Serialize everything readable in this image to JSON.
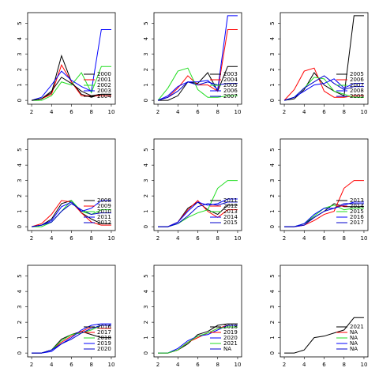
{
  "chart_data": [
    {
      "type": "line",
      "x": [
        2,
        3,
        4,
        5,
        6,
        7,
        8,
        9,
        10
      ],
      "xlim": [
        1.6,
        10.4
      ],
      "xticks": [
        2,
        4,
        6,
        8,
        10
      ],
      "ylim": [
        -0.25,
        5.7
      ],
      "yticks": [
        0,
        1,
        2,
        3,
        4,
        5
      ],
      "legend": "right",
      "series": [
        {
          "name": "2000",
          "color": "#000000",
          "values": [
            0,
            0.1,
            0.5,
            2.9,
            1.2,
            0.4,
            0.2,
            0.4,
            0.4
          ]
        },
        {
          "name": "2001",
          "color": "#ff0000",
          "values": [
            0,
            0.1,
            0.4,
            2.3,
            1.2,
            0.3,
            0.3,
            0.3,
            0.3
          ]
        },
        {
          "name": "2002",
          "color": "#22dd22",
          "values": [
            0,
            0,
            0.3,
            1.2,
            1.0,
            1.8,
            0.5,
            2.2,
            2.2
          ]
        },
        {
          "name": "2003",
          "color": "#0000ff",
          "values": [
            0,
            0.2,
            1.0,
            1.9,
            1.3,
            0.9,
            0.6,
            4.6,
            4.6
          ]
        },
        {
          "name": "2004",
          "color": "#000000",
          "values": [
            0,
            0.1,
            0.6,
            1.5,
            1.1,
            0.6,
            0.3,
            0.4,
            0.4
          ]
        }
      ]
    },
    {
      "type": "line",
      "x": [
        2,
        3,
        4,
        5,
        6,
        7,
        8,
        9,
        10
      ],
      "xlim": [
        1.6,
        10.4
      ],
      "xticks": [
        2,
        4,
        6,
        8,
        10
      ],
      "ylim": [
        -0.25,
        5.7
      ],
      "yticks": [
        0,
        1,
        2,
        3,
        4,
        5
      ],
      "legend": "right",
      "series": [
        {
          "name": "2003",
          "color": "#000000",
          "values": [
            0,
            0,
            0.3,
            1.2,
            1.1,
            1.8,
            0.6,
            2.2,
            2.2
          ]
        },
        {
          "name": "2004",
          "color": "#ff0000",
          "values": [
            0,
            0.2,
            0.8,
            1.6,
            1.0,
            1.0,
            0.6,
            4.6,
            4.6
          ]
        },
        {
          "name": "2005",
          "color": "#22dd22",
          "values": [
            0,
            0.8,
            1.9,
            2.1,
            0.7,
            0.2,
            0.2,
            0.3,
            0.3
          ]
        },
        {
          "name": "2006",
          "color": "#0000ff",
          "values": [
            0,
            0.3,
            0.9,
            1.2,
            1.2,
            1.3,
            0.7,
            5.5,
            5.5
          ]
        },
        {
          "name": "2007",
          "color": "#0000cc",
          "values": [
            0,
            0.2,
            0.6,
            1.2,
            1.0,
            1.2,
            1.0,
            1.1,
            1.1
          ]
        }
      ]
    },
    {
      "type": "line",
      "x": [
        2,
        3,
        4,
        5,
        6,
        7,
        8,
        9,
        10
      ],
      "xlim": [
        1.6,
        10.4
      ],
      "xticks": [
        2,
        4,
        6,
        8,
        10
      ],
      "ylim": [
        -0.25,
        5.7
      ],
      "yticks": [
        0,
        1,
        2,
        3,
        4,
        5
      ],
      "legend": "right",
      "series": [
        {
          "name": "2005",
          "color": "#000000",
          "values": [
            0,
            0.1,
            0.7,
            1.8,
            1.0,
            0.6,
            0.3,
            5.5,
            5.5
          ]
        },
        {
          "name": "2006",
          "color": "#ff0000",
          "values": [
            0,
            0.7,
            1.9,
            2.1,
            0.6,
            0.2,
            0.2,
            0.3,
            0.3
          ]
        },
        {
          "name": "2007",
          "color": "#22dd22",
          "values": [
            0,
            0.2,
            0.8,
            1.5,
            1.4,
            0.6,
            0.4,
            0.2,
            0.2
          ]
        },
        {
          "name": "2008",
          "color": "#0000ff",
          "values": [
            0,
            0.2,
            0.6,
            1.0,
            1.1,
            1.4,
            0.8,
            1.1,
            1.1
          ]
        },
        {
          "name": "2009",
          "color": "#0000cc",
          "values": [
            0,
            0.2,
            0.8,
            1.2,
            1.6,
            1.1,
            0.7,
            0.9,
            0.9
          ]
        }
      ]
    },
    {
      "type": "line",
      "x": [
        2,
        3,
        4,
        5,
        6,
        7,
        8,
        9,
        10
      ],
      "xlim": [
        1.6,
        10.4
      ],
      "xticks": [
        2,
        4,
        6,
        8,
        10
      ],
      "ylim": [
        -0.25,
        5.7
      ],
      "yticks": [
        0,
        1,
        2,
        3,
        4,
        5
      ],
      "legend": "right",
      "series": [
        {
          "name": "2008",
          "color": "#000000",
          "values": [
            0,
            0.1,
            0.5,
            1.5,
            1.7,
            0.9,
            0.5,
            0.2,
            0.2
          ]
        },
        {
          "name": "2009",
          "color": "#ff0000",
          "values": [
            0,
            0.2,
            0.8,
            1.7,
            1.6,
            0.9,
            0.3,
            0.1,
            0.1
          ]
        },
        {
          "name": "2010",
          "color": "#22dd22",
          "values": [
            0,
            0,
            0.3,
            1.0,
            1.7,
            1.0,
            0.8,
            1.1,
            1.1
          ]
        },
        {
          "name": "2011",
          "color": "#0000ff",
          "values": [
            0,
            0.1,
            0.4,
            1.3,
            1.6,
            1.0,
            1.2,
            1.7,
            1.7
          ]
        },
        {
          "name": "2012",
          "color": "#0000cc",
          "values": [
            0,
            0.1,
            0.3,
            1.0,
            1.5,
            1.1,
            0.8,
            0.9,
            0.9
          ]
        }
      ]
    },
    {
      "type": "line",
      "x": [
        2,
        3,
        4,
        5,
        6,
        7,
        8,
        9,
        10
      ],
      "xlim": [
        1.6,
        10.4
      ],
      "xticks": [
        2,
        4,
        6,
        8,
        10
      ],
      "ylim": [
        -0.25,
        5.7
      ],
      "yticks": [
        0,
        1,
        2,
        3,
        4,
        5
      ],
      "legend": "right",
      "series": [
        {
          "name": "2011",
          "color": "#000000",
          "values": [
            0,
            0,
            0.3,
            1.2,
            1.6,
            1.1,
            0.8,
            1.4,
            1.4
          ]
        },
        {
          "name": "2012",
          "color": "#ff0000",
          "values": [
            0,
            0,
            0.3,
            1.1,
            1.7,
            1.0,
            0.6,
            1.1,
            1.1
          ]
        },
        {
          "name": "2013",
          "color": "#22dd22",
          "values": [
            0,
            0,
            0.2,
            0.6,
            0.9,
            1.1,
            2.5,
            3.0,
            3.0
          ]
        },
        {
          "name": "2014",
          "color": "#0000ff",
          "values": [
            0,
            0,
            0.3,
            1.0,
            1.6,
            1.4,
            1.5,
            1.8,
            1.8
          ]
        },
        {
          "name": "2015",
          "color": "#0000cc",
          "values": [
            0,
            0,
            0.2,
            0.7,
            1.3,
            1.5,
            1.4,
            1.6,
            1.6
          ]
        }
      ]
    },
    {
      "type": "line",
      "x": [
        2,
        3,
        4,
        5,
        6,
        7,
        8,
        9,
        10
      ],
      "xlim": [
        1.6,
        10.4
      ],
      "xticks": [
        2,
        4,
        6,
        8,
        10
      ],
      "ylim": [
        -0.25,
        5.7
      ],
      "yticks": [
        0,
        1,
        2,
        3,
        4,
        5
      ],
      "legend": "right",
      "series": [
        {
          "name": "2013",
          "color": "#000000",
          "values": [
            0,
            0,
            0.2,
            0.6,
            1.0,
            1.5,
            1.3,
            1.3,
            1.3
          ]
        },
        {
          "name": "2014",
          "color": "#ff0000",
          "values": [
            0,
            0,
            0.1,
            0.4,
            0.8,
            1.0,
            2.5,
            3.0,
            3.0
          ]
        },
        {
          "name": "2015",
          "color": "#22dd22",
          "values": [
            0,
            0,
            0.2,
            0.7,
            1.2,
            1.4,
            1.1,
            1.2,
            1.2
          ]
        },
        {
          "name": "2016",
          "color": "#0000ff",
          "values": [
            0,
            0,
            0.2,
            0.8,
            1.2,
            1.2,
            1.4,
            1.6,
            1.6
          ]
        },
        {
          "name": "2017",
          "color": "#0000cc",
          "values": [
            0,
            0,
            0.1,
            0.6,
            1.0,
            1.2,
            1.5,
            1.5,
            1.5
          ]
        }
      ]
    },
    {
      "type": "line",
      "x": [
        2,
        3,
        4,
        5,
        6,
        7,
        8,
        9,
        10
      ],
      "xlim": [
        1.6,
        10.4
      ],
      "xticks": [
        2,
        4,
        6,
        8,
        10
      ],
      "ylim": [
        -0.25,
        5.7
      ],
      "yticks": [
        0,
        1,
        2,
        3,
        4,
        5
      ],
      "legend": "right",
      "series": [
        {
          "name": "2016",
          "color": "#000000",
          "values": [
            0,
            0,
            0.2,
            0.9,
            1.2,
            1.4,
            1.2,
            1.0,
            1.0
          ]
        },
        {
          "name": "2017",
          "color": "#ff0000",
          "values": [
            0,
            0,
            0.2,
            0.7,
            1.1,
            1.4,
            1.7,
            1.6,
            1.6
          ]
        },
        {
          "name": "2018",
          "color": "#22dd22",
          "values": [
            0,
            0,
            0.2,
            0.8,
            1.2,
            1.3,
            1.5,
            1.8,
            1.8
          ]
        },
        {
          "name": "2019",
          "color": "#0000ff",
          "values": [
            0,
            0,
            0.1,
            0.6,
            1.0,
            1.5,
            1.8,
            1.9,
            1.9
          ]
        },
        {
          "name": "2020",
          "color": "#0000cc",
          "values": [
            0,
            0,
            0.2,
            0.6,
            0.9,
            1.3,
            1.6,
            1.8,
            1.8
          ]
        }
      ]
    },
    {
      "type": "line",
      "x": [
        2,
        3,
        4,
        5,
        6,
        7,
        8,
        9,
        10
      ],
      "xlim": [
        1.6,
        10.4
      ],
      "xticks": [
        2,
        4,
        6,
        8,
        10
      ],
      "ylim": [
        -0.25,
        5.7
      ],
      "yticks": [
        0,
        1,
        2,
        3,
        4,
        5
      ],
      "legend": "right",
      "series": [
        {
          "name": "2018",
          "color": "#000000",
          "values": [
            0,
            0,
            0.2,
            0.6,
            1.2,
            1.4,
            1.8,
            1.9,
            1.9
          ]
        },
        {
          "name": "2019",
          "color": "#ff0000",
          "values": [
            0,
            0,
            0.2,
            0.7,
            1.0,
            1.3,
            1.6,
            1.8,
            1.8
          ]
        },
        {
          "name": "2020",
          "color": "#0000ff",
          "values": [
            0,
            0,
            0.3,
            0.8,
            1.1,
            1.2,
            1.5,
            1.8,
            1.8
          ]
        },
        {
          "name": "2021",
          "color": "#22dd22",
          "values": [
            0,
            0,
            0.2,
            0.7,
            1.1,
            1.3,
            1.6,
            1.7,
            1.7
          ]
        },
        {
          "name": "NA",
          "color": "#0000cc",
          "values": [
            null,
            null,
            null,
            null,
            null,
            null,
            null,
            null,
            null
          ]
        }
      ]
    },
    {
      "type": "line",
      "x": [
        2,
        3,
        4,
        5,
        6,
        7,
        8,
        9,
        10
      ],
      "xlim": [
        1.6,
        10.4
      ],
      "xticks": [
        2,
        4,
        6,
        8,
        10
      ],
      "ylim": [
        -0.25,
        5.7
      ],
      "yticks": [
        0,
        1,
        2,
        3,
        4,
        5
      ],
      "legend": "right",
      "series": [
        {
          "name": "2021",
          "color": "#000000",
          "values": [
            0,
            0,
            0.2,
            1.0,
            1.1,
            1.3,
            1.5,
            2.3,
            2.3
          ]
        },
        {
          "name": "NA",
          "color": "#ff0000",
          "values": [
            null,
            null,
            null,
            null,
            null,
            null,
            null,
            null,
            null
          ]
        },
        {
          "name": "NA",
          "color": "#22dd22",
          "values": [
            null,
            null,
            null,
            null,
            null,
            null,
            null,
            null,
            null
          ]
        },
        {
          "name": "NA",
          "color": "#0000ff",
          "values": [
            null,
            null,
            null,
            null,
            null,
            null,
            null,
            null,
            null
          ]
        },
        {
          "name": "NA",
          "color": "#0000cc",
          "values": [
            null,
            null,
            null,
            null,
            null,
            null,
            null,
            null,
            null
          ]
        }
      ]
    }
  ]
}
